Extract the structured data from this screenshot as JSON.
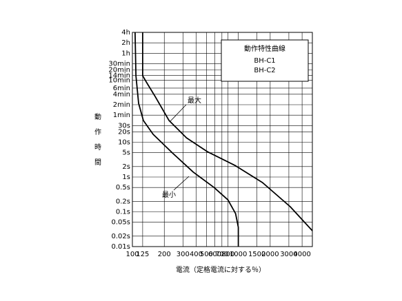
{
  "chart_data": {
    "type": "line",
    "title": "動作特性曲線",
    "models": [
      "BH-C1",
      "BH-C2"
    ],
    "x_label": "電流（定格電流に対する％）",
    "y_label": "動作時間",
    "log_x": true,
    "log_y": true,
    "grid": true,
    "xlim": [
      100,
      5000
    ],
    "ylim": [
      0.01,
      14400
    ],
    "xticks": [
      100,
      125,
      200,
      300,
      400,
      500,
      600,
      700,
      800,
      1000,
      1500,
      2000,
      3000,
      4000
    ],
    "yticks": [
      {
        "value": 0.01,
        "label": "0.01s"
      },
      {
        "value": 0.02,
        "label": "0.02s"
      },
      {
        "value": 0.05,
        "label": "0.05s"
      },
      {
        "value": 0.1,
        "label": "0.1s"
      },
      {
        "value": 0.2,
        "label": "0.2s"
      },
      {
        "value": 0.5,
        "label": "0.5s"
      },
      {
        "value": 1,
        "label": "1s"
      },
      {
        "value": 2,
        "label": "2s"
      },
      {
        "value": 5,
        "label": "5s"
      },
      {
        "value": 10,
        "label": "10s"
      },
      {
        "value": 20,
        "label": "20s"
      },
      {
        "value": 30,
        "label": "30s"
      },
      {
        "value": 60,
        "label": "1min"
      },
      {
        "value": 120,
        "label": "2min"
      },
      {
        "value": 240,
        "label": "4min"
      },
      {
        "value": 360,
        "label": "6min"
      },
      {
        "value": 600,
        "label": "10min"
      },
      {
        "value": 840,
        "label": "14min"
      },
      {
        "value": 1200,
        "label": "20min"
      },
      {
        "value": 1800,
        "label": "30min"
      },
      {
        "value": 3600,
        "label": "1h"
      },
      {
        "value": 7200,
        "label": "2h"
      },
      {
        "value": 14400,
        "label": "4h"
      }
    ],
    "series": [
      {
        "name": "最大",
        "color": "#000000",
        "x": [
          125,
          125,
          139,
          164,
          222,
          324,
          508,
          927,
          1693,
          3092,
          5000
        ],
        "values": [
          14400,
          815,
          471,
          207,
          42,
          13.4,
          5.4,
          2.17,
          0.69,
          0.14,
          0.0285
        ]
      },
      {
        "name": "最小",
        "color": "#000000",
        "x": [
          106,
          108,
          114.5,
          127,
          157,
          239,
          376,
          590,
          798,
          942,
          1000,
          1000
        ],
        "values": [
          14400,
          815,
          131,
          42,
          16.9,
          4.9,
          1.38,
          0.5,
          0.22,
          0.089,
          0.036,
          0.01
        ]
      }
    ]
  }
}
